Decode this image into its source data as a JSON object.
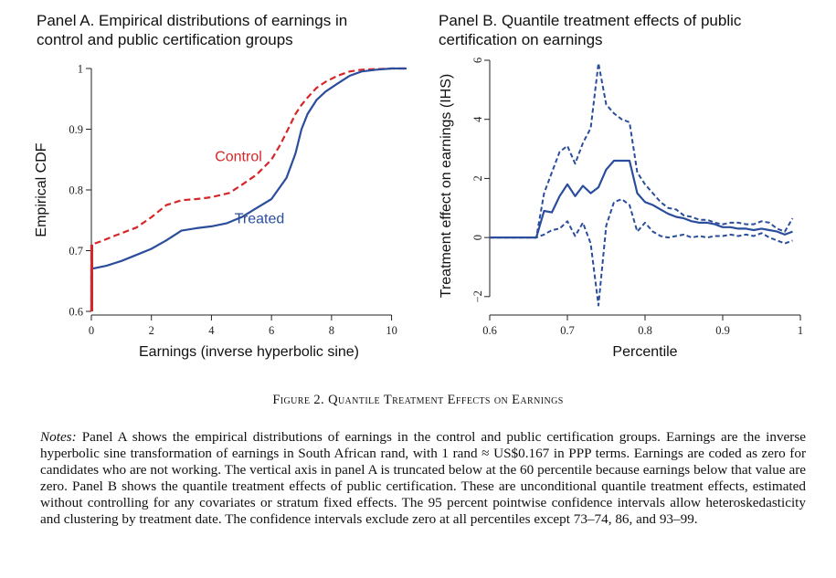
{
  "panelA_title": "Panel A. Empirical distributions of earnings in\ncontrol and public certification groups",
  "panelB_title": "Panel B. Quantile treatment effects of public\ncertification on earnings",
  "figure_caption": "Figure 2. Quantile Treatment Effects on Earnings",
  "notes_lead": "Notes:",
  "notes_body": "Panel A shows the empirical distributions of earnings in the control and public certification groups. Earnings are the inverse hyperbolic sine transformation of earnings in South African rand, with 1 rand ≈ US$0.167 in PPP terms. Earnings are coded as zero for candidates who are not working. The vertical axis in panel A is truncated below at the 60 percentile because earnings below that value are zero. Panel B shows the quantile treatment effects of public certification. These are unconditional quantile treatment effects, estimated without controlling for any covariates or stratum fixed effects. The 95 percent pointwise confidence intervals allow heteroskedasticity and clustering by treatment date. The confidence intervals exclude zero at all percentiles except 73–74, 86, and 93–99.",
  "colors": {
    "control": "#d62728",
    "treated": "#2a4d9c",
    "qte": "#2a4d9c",
    "axis": "#222222"
  },
  "chart_data": [
    {
      "type": "line",
      "xlabel": "Earnings (inverse hyperbolic sine)",
      "ylabel": "Empirical CDF",
      "xlim": [
        0,
        10.5
      ],
      "ylim": [
        0.6,
        1.0
      ],
      "x_ticks": [
        0,
        2,
        4,
        6,
        8,
        10
      ],
      "y_ticks": [
        0.6,
        0.7,
        0.8,
        0.9,
        1
      ],
      "grid": false,
      "annotations": [
        {
          "text": "Control",
          "series": "Control",
          "x": 4.9,
          "y": 0.847
        },
        {
          "text": "Treated",
          "series": "Treated",
          "x": 5.6,
          "y": 0.745
        }
      ],
      "series": [
        {
          "name": "Control",
          "style": "dashed",
          "x": [
            0,
            0,
            0.3,
            0.8,
            1.5,
            2.0,
            2.5,
            3.0,
            3.5,
            4.0,
            4.6,
            5.0,
            5.5,
            6.0,
            6.3,
            6.6,
            6.8,
            7.0,
            7.2,
            7.5,
            7.8,
            8.2,
            8.6,
            9.0,
            9.5,
            10.0,
            10.5
          ],
          "y": [
            0.6,
            0.71,
            0.715,
            0.725,
            0.738,
            0.755,
            0.775,
            0.783,
            0.785,
            0.788,
            0.795,
            0.808,
            0.825,
            0.85,
            0.875,
            0.905,
            0.925,
            0.94,
            0.952,
            0.968,
            0.978,
            0.988,
            0.995,
            0.998,
            0.999,
            1.0,
            1.0
          ]
        },
        {
          "name": "Treated",
          "style": "solid",
          "x": [
            0,
            0,
            0.5,
            1.0,
            1.5,
            2.0,
            2.5,
            3.0,
            3.5,
            4.0,
            4.5,
            5.0,
            5.5,
            6.0,
            6.5,
            6.8,
            7.0,
            7.2,
            7.5,
            7.8,
            8.2,
            8.6,
            9.0,
            9.5,
            10.0,
            10.5
          ],
          "y": [
            0.6,
            0.67,
            0.675,
            0.683,
            0.693,
            0.703,
            0.717,
            0.733,
            0.737,
            0.74,
            0.745,
            0.755,
            0.77,
            0.785,
            0.82,
            0.86,
            0.9,
            0.925,
            0.948,
            0.962,
            0.975,
            0.988,
            0.995,
            0.998,
            1.0,
            1.0
          ]
        }
      ]
    },
    {
      "type": "line",
      "xlabel": "Percentile",
      "ylabel": "Treatment effect on earnings (IHS)",
      "xlim": [
        0.6,
        1.0
      ],
      "ylim": [
        -2.5,
        6.0
      ],
      "x_ticks": [
        0.6,
        0.7,
        0.8,
        0.9,
        1
      ],
      "x_tick_labels": [
        "0.6",
        "0.7",
        "0.8",
        "0.9",
        "1"
      ],
      "y_ticks": [
        -2,
        0,
        2,
        4,
        6
      ],
      "y_tick_labels": [
        "−2",
        "0",
        "2",
        "4",
        "6"
      ],
      "grid": false,
      "x": [
        0.6,
        0.61,
        0.62,
        0.63,
        0.64,
        0.65,
        0.66,
        0.67,
        0.68,
        0.69,
        0.7,
        0.71,
        0.72,
        0.73,
        0.74,
        0.75,
        0.76,
        0.77,
        0.78,
        0.79,
        0.8,
        0.81,
        0.82,
        0.83,
        0.84,
        0.85,
        0.86,
        0.87,
        0.88,
        0.89,
        0.9,
        0.91,
        0.92,
        0.93,
        0.94,
        0.95,
        0.96,
        0.97,
        0.98,
        0.99
      ],
      "series": [
        {
          "name": "Point estimate",
          "style": "solid",
          "values": [
            0,
            0,
            0,
            0,
            0,
            0,
            0,
            0.9,
            0.85,
            1.4,
            1.8,
            1.4,
            1.75,
            1.5,
            1.7,
            2.3,
            2.6,
            2.6,
            2.6,
            1.5,
            1.2,
            1.1,
            0.95,
            0.8,
            0.7,
            0.65,
            0.55,
            0.5,
            0.5,
            0.45,
            0.35,
            0.35,
            0.3,
            0.3,
            0.25,
            0.3,
            0.25,
            0.2,
            0.1,
            0.2
          ]
        },
        {
          "name": "Upper 95% CI",
          "style": "dashed",
          "values": [
            0,
            0,
            0,
            0,
            0,
            0,
            0,
            1.5,
            2.2,
            2.9,
            3.1,
            2.5,
            3.2,
            3.7,
            5.9,
            4.5,
            4.2,
            4.0,
            3.9,
            2.2,
            1.8,
            1.5,
            1.2,
            1.0,
            0.95,
            0.75,
            0.7,
            0.6,
            0.6,
            0.5,
            0.45,
            0.5,
            0.5,
            0.45,
            0.45,
            0.55,
            0.5,
            0.3,
            0.2,
            0.65
          ]
        },
        {
          "name": "Lower 95% CI",
          "style": "dashed",
          "values": [
            0,
            0,
            0,
            0,
            0,
            0,
            0,
            0.1,
            0.25,
            0.3,
            0.55,
            0.05,
            0.5,
            -0.2,
            -2.3,
            0.4,
            1.2,
            1.3,
            1.1,
            0.2,
            0.5,
            0.2,
            0.05,
            0.0,
            0.05,
            0.1,
            0.0,
            0.05,
            0.0,
            0.05,
            0.05,
            0.1,
            0.05,
            0.1,
            0.05,
            0.15,
            0.0,
            -0.1,
            -0.2,
            -0.1
          ]
        }
      ]
    }
  ]
}
